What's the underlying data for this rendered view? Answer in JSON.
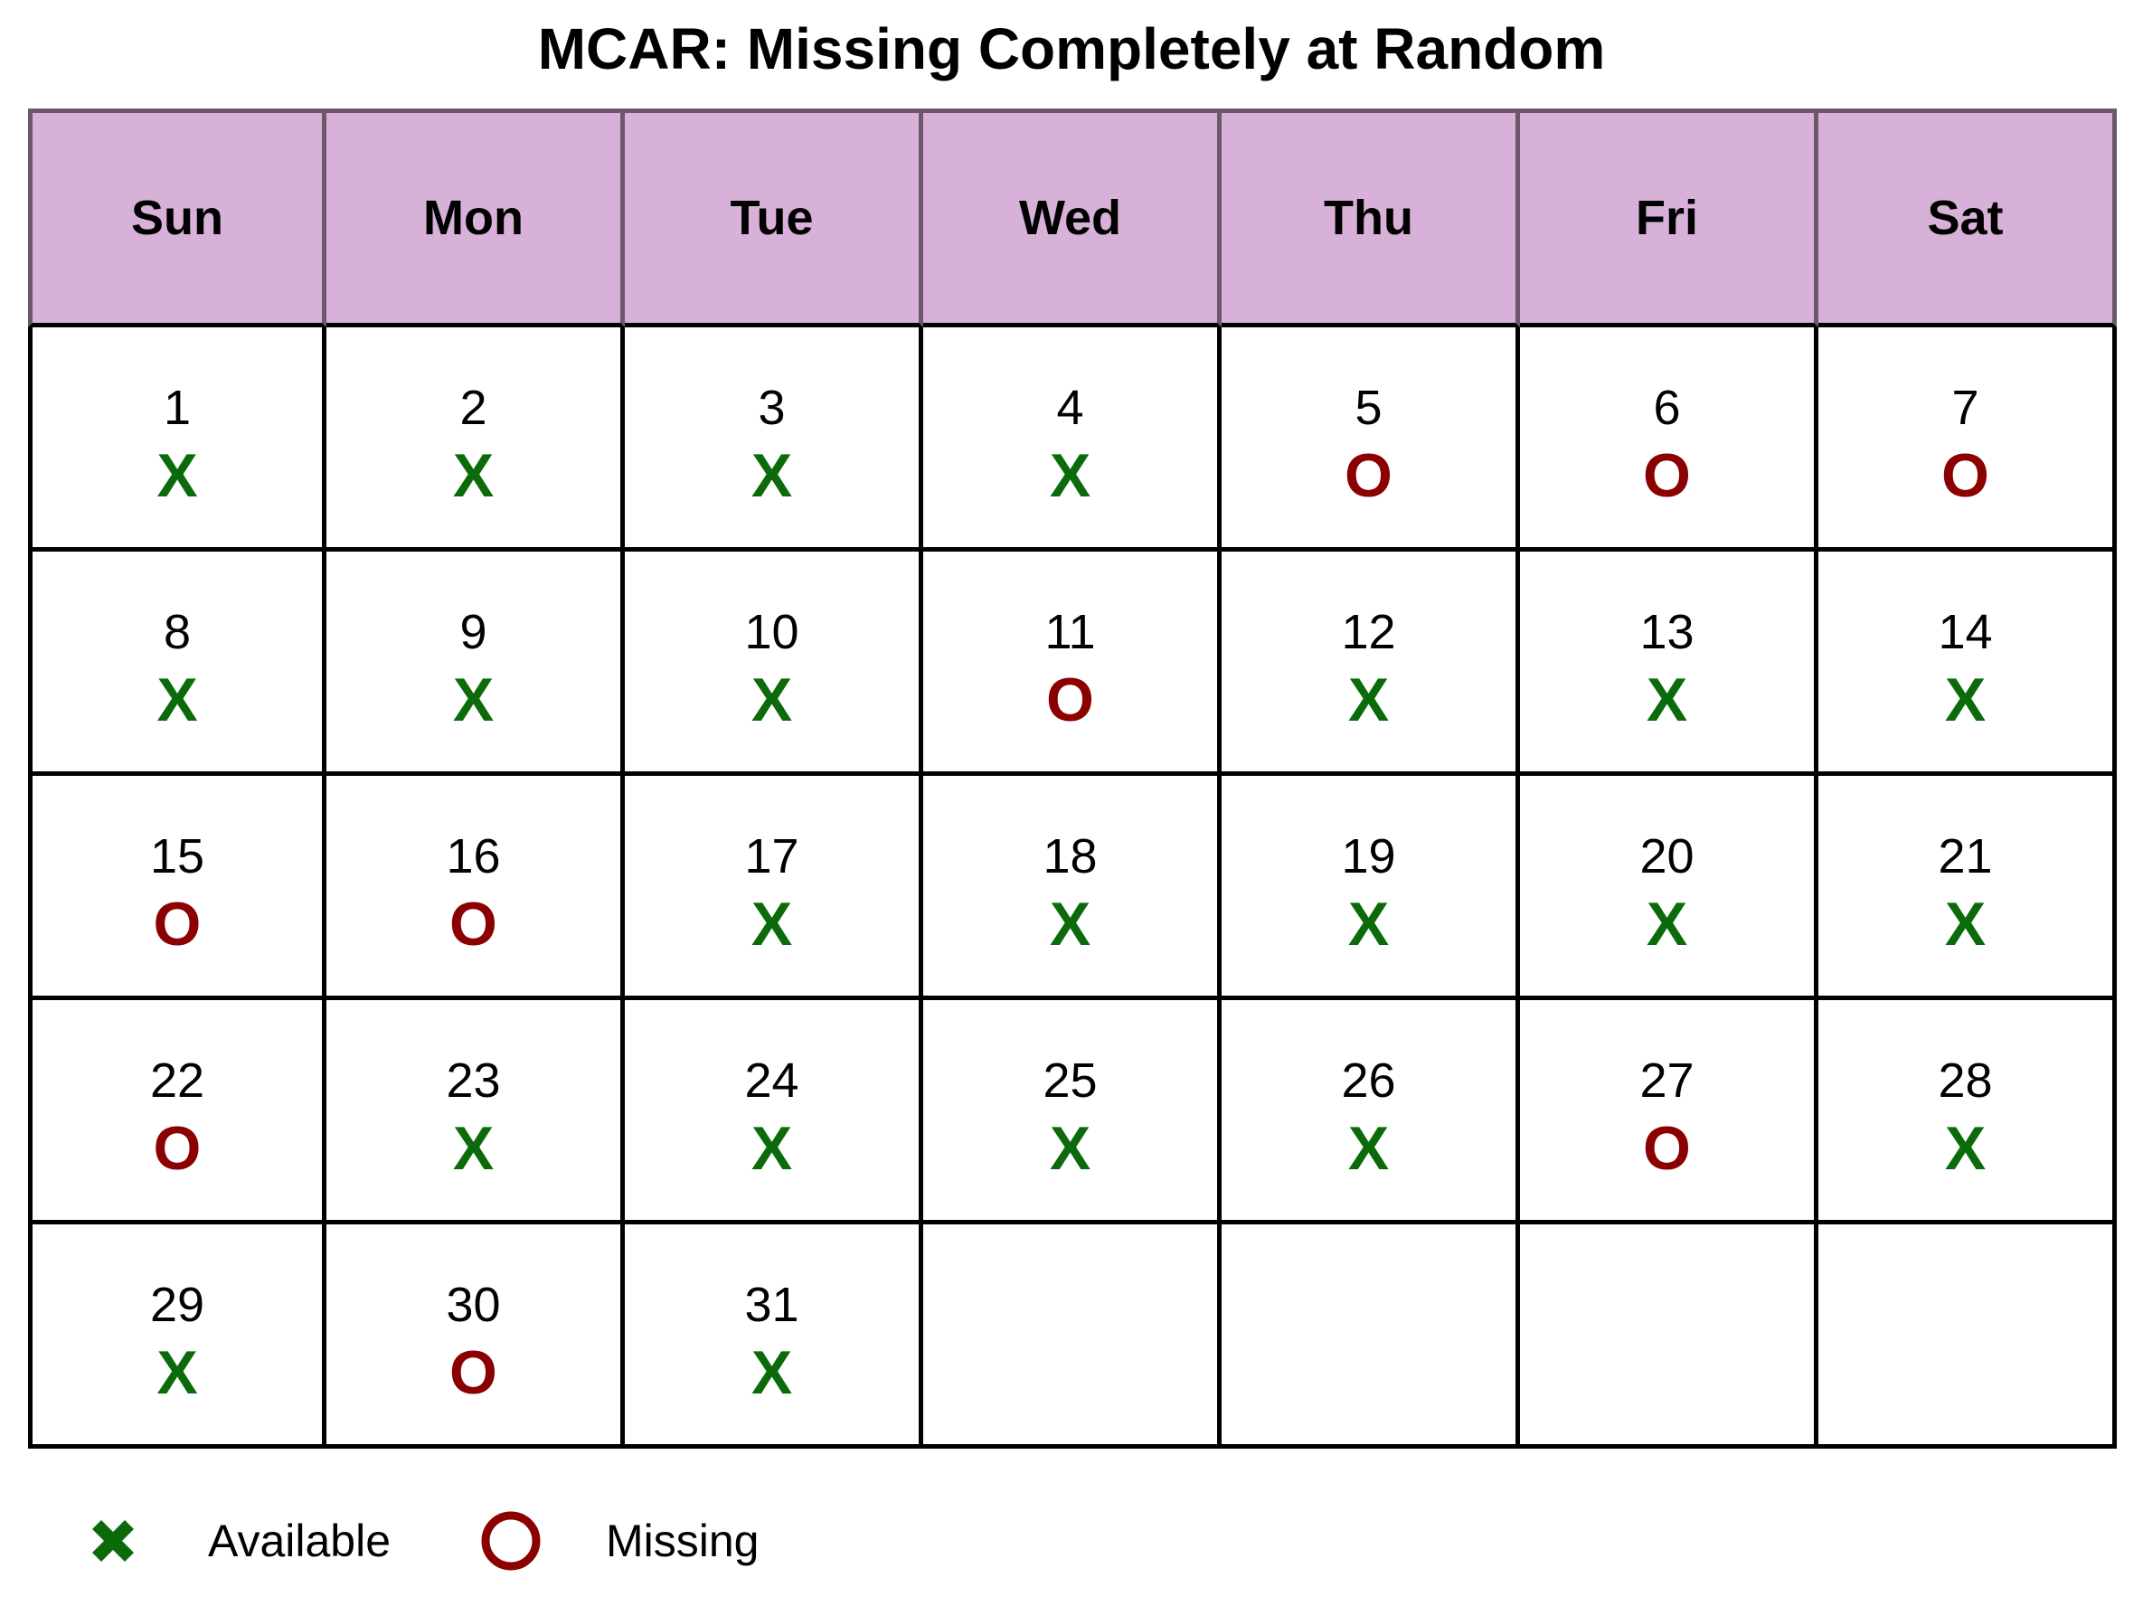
{
  "title": "MCAR: Missing Completely at Random",
  "colors": {
    "header_bg": "#d8b1d8",
    "available": "#0b6b0b",
    "missing": "#8b0000"
  },
  "days": [
    "Sun",
    "Mon",
    "Tue",
    "Wed",
    "Thu",
    "Fri",
    "Sat"
  ],
  "cells": [
    {
      "day": "1",
      "status": "available",
      "mark": "X"
    },
    {
      "day": "2",
      "status": "available",
      "mark": "X"
    },
    {
      "day": "3",
      "status": "available",
      "mark": "X"
    },
    {
      "day": "4",
      "status": "available",
      "mark": "X"
    },
    {
      "day": "5",
      "status": "missing",
      "mark": "O"
    },
    {
      "day": "6",
      "status": "missing",
      "mark": "O"
    },
    {
      "day": "7",
      "status": "missing",
      "mark": "O"
    },
    {
      "day": "8",
      "status": "available",
      "mark": "X"
    },
    {
      "day": "9",
      "status": "available",
      "mark": "X"
    },
    {
      "day": "10",
      "status": "available",
      "mark": "X"
    },
    {
      "day": "11",
      "status": "missing",
      "mark": "O"
    },
    {
      "day": "12",
      "status": "available",
      "mark": "X"
    },
    {
      "day": "13",
      "status": "available",
      "mark": "X"
    },
    {
      "day": "14",
      "status": "available",
      "mark": "X"
    },
    {
      "day": "15",
      "status": "missing",
      "mark": "O"
    },
    {
      "day": "16",
      "status": "missing",
      "mark": "O"
    },
    {
      "day": "17",
      "status": "available",
      "mark": "X"
    },
    {
      "day": "18",
      "status": "available",
      "mark": "X"
    },
    {
      "day": "19",
      "status": "available",
      "mark": "X"
    },
    {
      "day": "20",
      "status": "available",
      "mark": "X"
    },
    {
      "day": "21",
      "status": "available",
      "mark": "X"
    },
    {
      "day": "22",
      "status": "missing",
      "mark": "O"
    },
    {
      "day": "23",
      "status": "available",
      "mark": "X"
    },
    {
      "day": "24",
      "status": "available",
      "mark": "X"
    },
    {
      "day": "25",
      "status": "available",
      "mark": "X"
    },
    {
      "day": "26",
      "status": "available",
      "mark": "X"
    },
    {
      "day": "27",
      "status": "missing",
      "mark": "O"
    },
    {
      "day": "28",
      "status": "available",
      "mark": "X"
    },
    {
      "day": "29",
      "status": "available",
      "mark": "X"
    },
    {
      "day": "30",
      "status": "missing",
      "mark": "O"
    },
    {
      "day": "31",
      "status": "available",
      "mark": "X"
    },
    {
      "day": "",
      "status": "empty",
      "mark": ""
    },
    {
      "day": "",
      "status": "empty",
      "mark": ""
    },
    {
      "day": "",
      "status": "empty",
      "mark": ""
    },
    {
      "day": "",
      "status": "empty",
      "mark": ""
    }
  ],
  "legend": [
    {
      "label": "Available",
      "icon": "x-icon"
    },
    {
      "label": "Missing",
      "icon": "circle-icon"
    }
  ]
}
